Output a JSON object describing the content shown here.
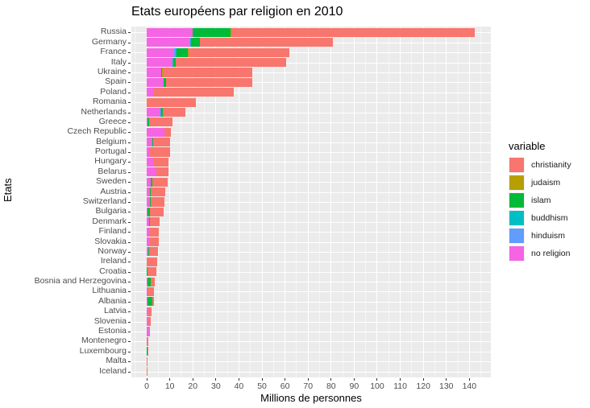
{
  "chart_data": {
    "type": "bar",
    "orientation": "horizontal",
    "stacked": true,
    "title": "Etats européens par religion en 2010",
    "xlabel": "Millions de personnes",
    "ylabel": "Etats",
    "xlim": [
      -6.5,
      149.5
    ],
    "xticks": [
      0,
      10,
      20,
      30,
      40,
      50,
      60,
      70,
      80,
      90,
      100,
      110,
      120,
      130,
      140
    ],
    "grid": true,
    "legend_title": "variable",
    "legend_position": "right",
    "series_colors": {
      "christianity": "#F8766D",
      "judaism": "#B79F00",
      "islam": "#00BA38",
      "buddhism": "#00BFC4",
      "hinduism": "#619CFF",
      "no religion": "#F564E3"
    },
    "stack_order": [
      "no religion",
      "hinduism",
      "buddhism",
      "islam",
      "judaism",
      "christianity"
    ],
    "categories": [
      "Russia",
      "Germany",
      "France",
      "Italy",
      "Ukraine",
      "Spain",
      "Poland",
      "Romania",
      "Netherlands",
      "Greece",
      "Czech Republic",
      "Belgium",
      "Portugal",
      "Hungary",
      "Belarus",
      "Sweden",
      "Austria",
      "Switzerland",
      "Bulgaria",
      "Denmark",
      "Finland",
      "Slovakia",
      "Norway",
      "Ireland",
      "Croatia",
      "Bosnia and Herzegovina",
      "Lithuania",
      "Albania",
      "Latvia",
      "Slovenia",
      "Estonia",
      "Montenegro",
      "Luxembourg",
      "Malta",
      "Iceland"
    ],
    "series": [
      {
        "name": "no religion",
        "values": [
          20.0,
          19.1,
          12.2,
          11.5,
          6.3,
          7.5,
          2.8,
          0.2,
          6.0,
          0.5,
          8.0,
          2.5,
          1.1,
          2.8,
          4.2,
          2.0,
          1.4,
          1.4,
          0.4,
          1.2,
          1.6,
          1.4,
          1.0,
          0.3,
          0.3,
          0.4,
          0.5,
          0.6,
          0.9,
          0.9,
          1.1,
          0.1,
          0.0,
          0.0,
          0.0
        ]
      },
      {
        "name": "hinduism",
        "values": [
          0.0,
          0.1,
          0.6,
          0.0,
          0.0,
          0.0,
          0.0,
          0.0,
          0.2,
          0.0,
          0.0,
          0.0,
          0.0,
          0.0,
          0.0,
          0.0,
          0.0,
          0.0,
          0.0,
          0.0,
          0.0,
          0.0,
          0.0,
          0.0,
          0.0,
          0.0,
          0.0,
          0.0,
          0.0,
          0.0,
          0.0,
          0.0,
          0.0,
          0.0,
          0.0
        ]
      },
      {
        "name": "buddhism",
        "values": [
          0.2,
          0.1,
          0.4,
          0.1,
          0.0,
          0.0,
          0.0,
          0.0,
          0.1,
          0.0,
          0.0,
          0.0,
          0.0,
          0.0,
          0.0,
          0.0,
          0.0,
          0.0,
          0.0,
          0.0,
          0.0,
          0.0,
          0.0,
          0.0,
          0.0,
          0.0,
          0.0,
          0.0,
          0.0,
          0.0,
          0.0,
          0.0,
          0.0,
          0.0,
          0.0
        ]
      },
      {
        "name": "islam",
        "values": [
          16.3,
          3.8,
          4.8,
          1.0,
          0.6,
          1.0,
          0.0,
          0.1,
          1.0,
          0.6,
          0.0,
          0.6,
          0.0,
          0.0,
          0.0,
          0.5,
          0.5,
          0.4,
          1.0,
          0.2,
          0.0,
          0.0,
          0.1,
          0.0,
          0.1,
          1.6,
          0.0,
          2.1,
          0.0,
          0.0,
          0.0,
          0.1,
          0.4,
          0.0,
          0.0
        ]
      },
      {
        "name": "judaism",
        "values": [
          0.2,
          0.2,
          0.3,
          0.0,
          0.1,
          0.0,
          0.0,
          0.0,
          0.0,
          0.0,
          0.0,
          0.0,
          0.0,
          0.0,
          0.0,
          0.0,
          0.0,
          0.0,
          0.0,
          0.0,
          0.0,
          0.0,
          0.0,
          0.0,
          0.0,
          0.0,
          0.0,
          0.0,
          0.0,
          0.0,
          0.0,
          0.0,
          0.0,
          0.0,
          0.0
        ]
      },
      {
        "name": "christianity",
        "values": [
          105.8,
          57.8,
          43.7,
          47.9,
          39.0,
          37.5,
          35.0,
          21.1,
          9.5,
          10.1,
          2.5,
          7.1,
          9.2,
          6.8,
          5.3,
          6.7,
          6.3,
          6.0,
          6.1,
          4.2,
          3.8,
          4.0,
          3.9,
          4.3,
          4.1,
          1.8,
          2.8,
          0.5,
          1.3,
          1.1,
          0.2,
          0.5,
          0.1,
          0.4,
          0.3
        ]
      }
    ]
  }
}
